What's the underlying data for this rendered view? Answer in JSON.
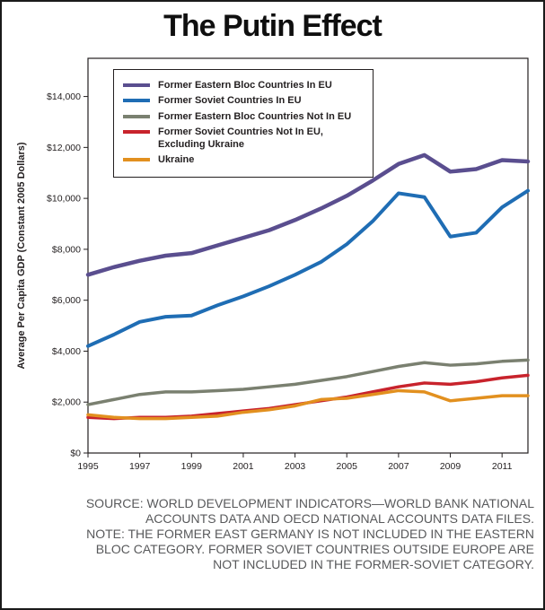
{
  "title": "The Putin Effect",
  "footer": {
    "lines": [
      "SOURCE: WORLD DEVELOPMENT INDICATORS—WORLD BANK NATIONAL",
      "ACCOUNTS DATA AND OECD NATIONAL ACCOUNTS DATA FILES.",
      "NOTE: THE FORMER EAST GERMANY IS NOT INCLUDED IN THE EASTERN",
      "BLOC CATEGORY. FORMER SOVIET COUNTRIES OUTSIDE EUROPE ARE",
      "NOT INCLUDED IN THE FORMER-SOVIET CATEGORY."
    ]
  },
  "chart_data": {
    "type": "line",
    "title": "The Putin Effect",
    "xlabel": "",
    "ylabel": "Average Per Capita GDP (Constant 2005 Dollars)",
    "grid": false,
    "legend_position": "inside-top-left",
    "ylim": [
      0,
      15500
    ],
    "x": [
      1995,
      1996,
      1997,
      1998,
      1999,
      2000,
      2001,
      2002,
      2003,
      2004,
      2005,
      2006,
      2007,
      2008,
      2009,
      2010,
      2011,
      2012
    ],
    "x_ticks": [
      1995,
      1997,
      1999,
      2001,
      2003,
      2005,
      2007,
      2009,
      2011
    ],
    "y_ticks": [
      {
        "value": 0,
        "label": "$0"
      },
      {
        "value": 2000,
        "label": "$2,000"
      },
      {
        "value": 4000,
        "label": "$4,000"
      },
      {
        "value": 6000,
        "label": "$6,000"
      },
      {
        "value": 8000,
        "label": "$8,000"
      },
      {
        "value": 10000,
        "label": "$10,000"
      },
      {
        "value": 12000,
        "label": "$12,000"
      },
      {
        "value": 14000,
        "label": "$14,000"
      }
    ],
    "series": [
      {
        "name": "Former Eastern Bloc Countries In EU",
        "color": "#5a4e8f",
        "values": [
          7000,
          7300,
          7550,
          7750,
          7850,
          8150,
          8450,
          8750,
          9150,
          9600,
          10100,
          10700,
          11350,
          11700,
          11050,
          11150,
          11500,
          11450
        ]
      },
      {
        "name": "Former Soviet Countries In EU",
        "color": "#1f6db4",
        "values": [
          4200,
          4650,
          5150,
          5350,
          5400,
          5800,
          6150,
          6550,
          7000,
          7500,
          8200,
          9100,
          10200,
          10050,
          8500,
          8650,
          9650,
          10300
        ]
      },
      {
        "name": "Former Eastern Bloc Countries Not In EU",
        "color": "#7a8070",
        "values": [
          1900,
          2100,
          2300,
          2400,
          2400,
          2450,
          2500,
          2600,
          2700,
          2850,
          3000,
          3200,
          3400,
          3550,
          3450,
          3500,
          3600,
          3650
        ]
      },
      {
        "name": "Former Soviet Countries Not In EU,\nExcluding Ukraine",
        "color": "#c8232c",
        "values": [
          1400,
          1350,
          1400,
          1400,
          1450,
          1550,
          1650,
          1750,
          1900,
          2050,
          2200,
          2400,
          2600,
          2750,
          2700,
          2800,
          2950,
          3050
        ]
      },
      {
        "name": "Ukraine",
        "color": "#e2901f",
        "values": [
          1500,
          1400,
          1350,
          1350,
          1400,
          1450,
          1600,
          1700,
          1850,
          2100,
          2150,
          2300,
          2450,
          2400,
          2050,
          2150,
          2250,
          2250
        ]
      }
    ]
  }
}
